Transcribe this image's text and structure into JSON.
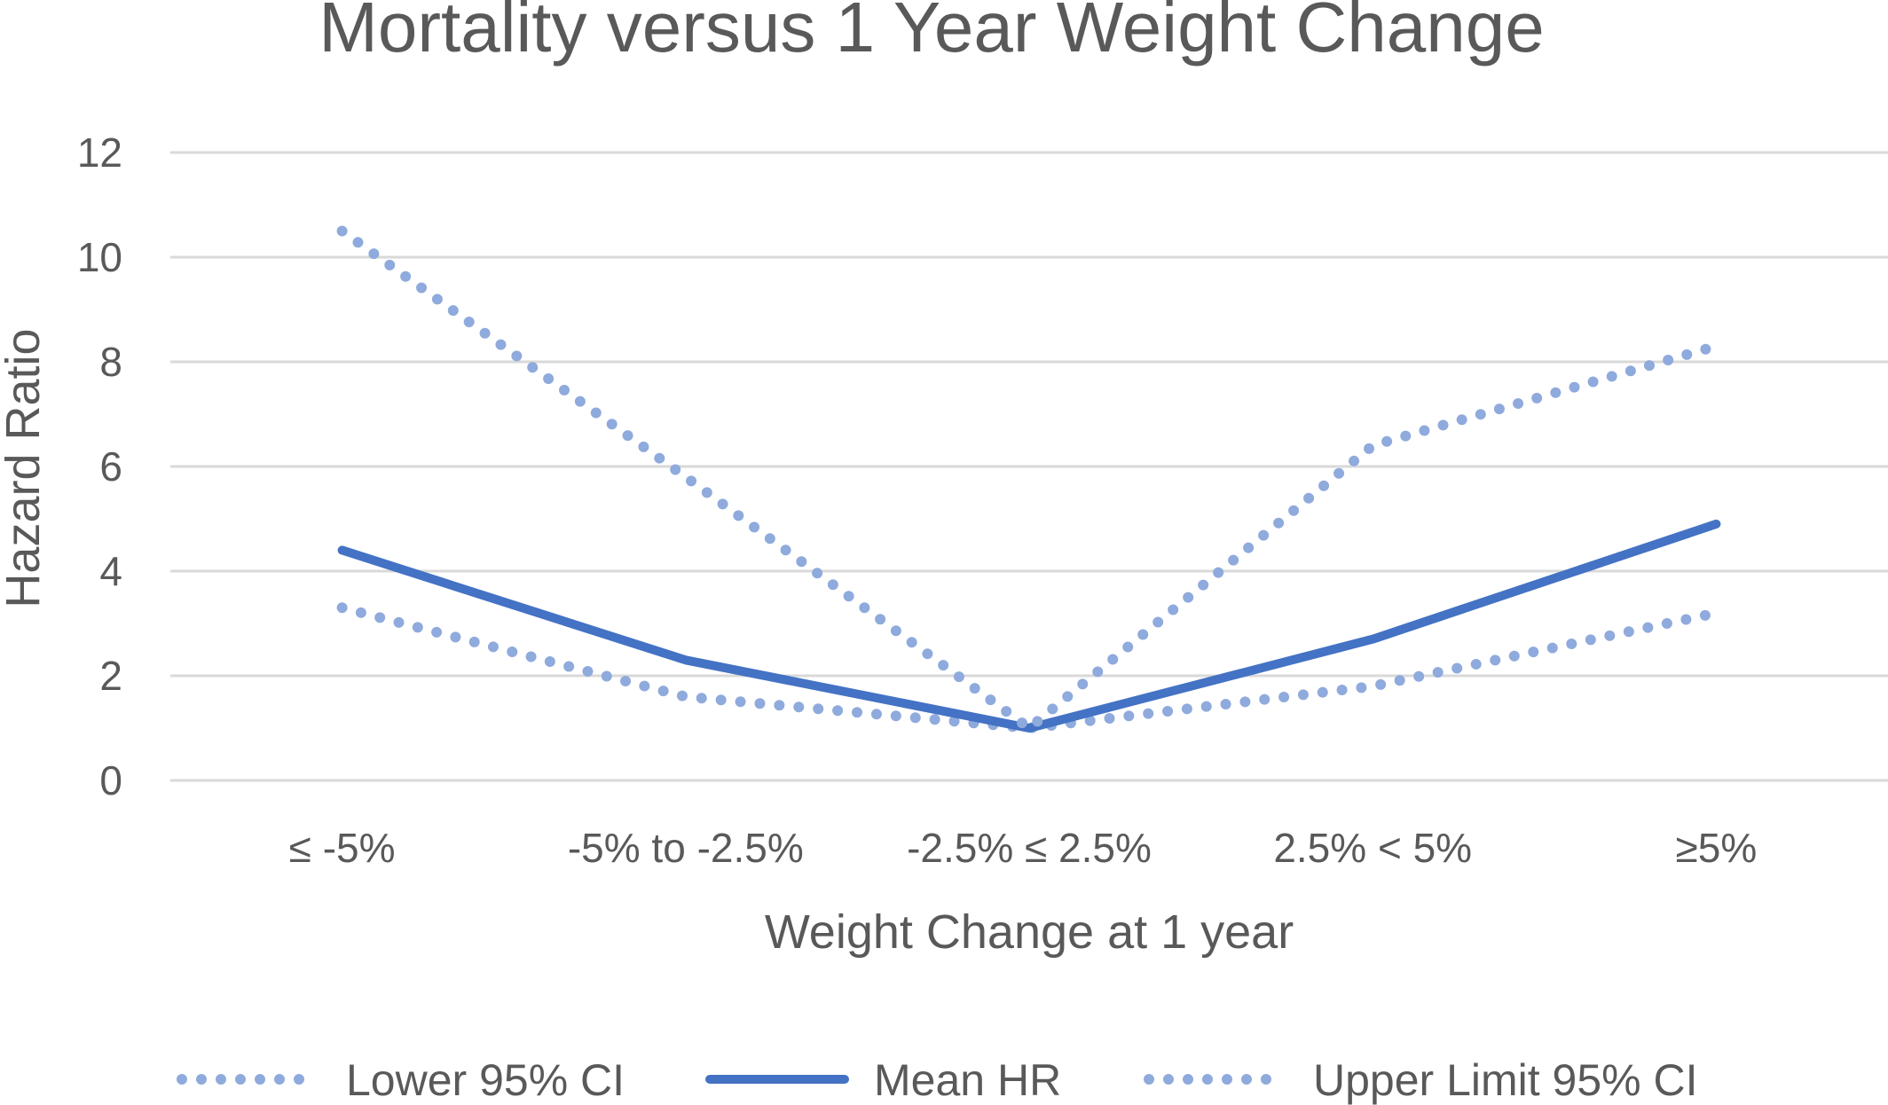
{
  "chart_data": {
    "type": "line",
    "title": "Mortality versus 1 Year Weight Change",
    "xlabel": "Weight Change at 1 year",
    "ylabel": "Hazard Ratio",
    "categories": [
      "≤ -5%",
      "-5% to -2.5%",
      "-2.5% ≤ 2.5%",
      "2.5% < 5%",
      "≥5%"
    ],
    "ylim": [
      0,
      12
    ],
    "yticks": [
      0,
      2,
      4,
      6,
      8,
      10,
      12
    ],
    "grid": true,
    "legend_position": "bottom",
    "series": [
      {
        "name": "Lower 95% CI",
        "style": "dotted",
        "color": "#8faadc",
        "values": [
          3.3,
          1.6,
          1.0,
          1.8,
          3.2
        ]
      },
      {
        "name": "Mean HR",
        "style": "solid",
        "color": "#4472c4",
        "values": [
          4.4,
          2.3,
          1.0,
          2.7,
          4.9
        ]
      },
      {
        "name": "Upper Limit 95% CI",
        "style": "dotted",
        "color": "#8faadc",
        "values": [
          10.5,
          5.8,
          1.0,
          6.4,
          8.3
        ]
      }
    ]
  }
}
